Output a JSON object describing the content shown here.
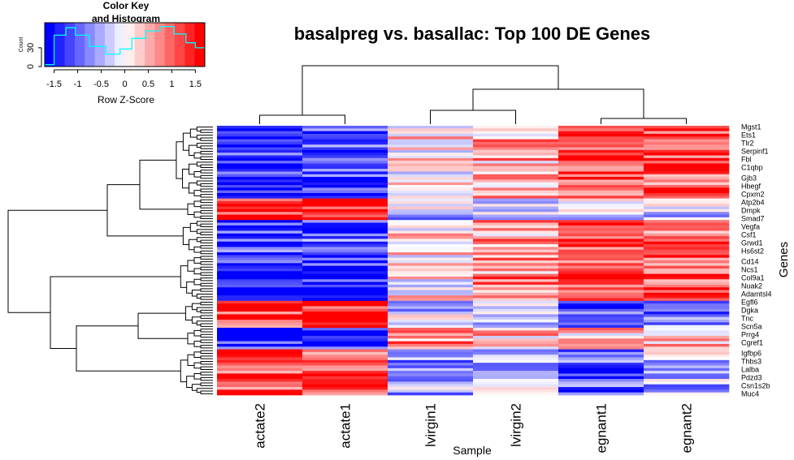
{
  "chart_data": {
    "type": "heatmap",
    "title": "basalpreg vs. basallac: Top 100 DE Genes",
    "xlabel": "Sample",
    "ylabel": "Genes",
    "columns_in_order": [
      "actate2",
      "actate1",
      "lvirgin1",
      "lvirgin2",
      "egnant1",
      "egnant2"
    ],
    "gene_labels_shown": [
      "Mgst1",
      "Ets1",
      "Tlr2",
      "Serpinf1",
      "Fbl",
      "C1qbp",
      "Gjb3",
      "Hbegf",
      "Cpxm2",
      "Atp2b4",
      "Dmpk",
      "Smad7",
      "Vegfa",
      "Csf1",
      "Grwd1",
      "Hs6st2",
      "Cd14",
      "Ncs1",
      "Col9a1",
      "Nuak2",
      "Adamtsl4",
      "Egfl6",
      "Dgka",
      "Tnc",
      "Scn5a",
      "Prrg4",
      "Cgref1",
      "Igfbp6",
      "Thbs3",
      "Lalba",
      "Pdzd3",
      "Csn1s2b",
      "Muc4"
    ],
    "n_rows": 100,
    "block_pattern": [
      {
        "rows": 27,
        "z": [
          -1.3,
          -1.1,
          0.2,
          0.5,
          1.2,
          1.1
        ]
      },
      {
        "rows": 8,
        "z": [
          1.4,
          1.5,
          -0.4,
          -0.6,
          -0.3,
          -0.2
        ]
      },
      {
        "rows": 13,
        "z": [
          -1.2,
          -1.0,
          0.3,
          0.6,
          1.1,
          1.0
        ]
      },
      {
        "rows": 17,
        "z": [
          -1.3,
          -1.4,
          0.2,
          0.7,
          1.2,
          1.1
        ]
      },
      {
        "rows": 10,
        "z": [
          1.3,
          1.4,
          -0.3,
          -0.2,
          -0.9,
          -0.8
        ]
      },
      {
        "rows": 8,
        "z": [
          -1.4,
          -1.3,
          0.8,
          0.3,
          0.5,
          0.6
        ]
      },
      {
        "rows": 17,
        "z": [
          1.1,
          1.2,
          -0.6,
          -0.5,
          -1.1,
          -0.4
        ]
      }
    ],
    "color_key": {
      "title": "Color Key and Histogram",
      "xlabel": "Row Z-Score",
      "ylabel": "Count",
      "x_ticks": [
        "-1.5",
        "-1",
        "-0.5",
        "0",
        "0.5",
        "1",
        "1.5"
      ],
      "y_ticks": [
        "0",
        "30"
      ],
      "x_range": [
        -1.7,
        1.7
      ],
      "y_range": [
        0,
        70
      ],
      "histogram_steps": [
        [
          -1.7,
          3
        ],
        [
          -1.5,
          50
        ],
        [
          -1.25,
          62
        ],
        [
          -1.05,
          50
        ],
        [
          -0.75,
          32
        ],
        [
          -0.4,
          20
        ],
        [
          -0.1,
          28
        ],
        [
          0.15,
          45
        ],
        [
          0.45,
          57
        ],
        [
          0.75,
          64
        ],
        [
          1.05,
          52
        ],
        [
          1.3,
          38
        ],
        [
          1.5,
          30
        ]
      ]
    }
  }
}
